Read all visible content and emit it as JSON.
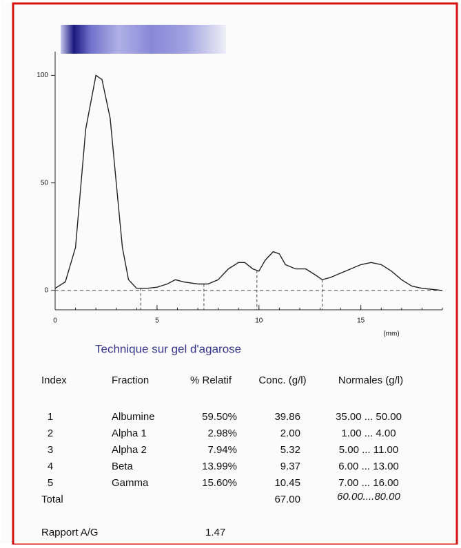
{
  "chart_data": {
    "type": "line",
    "xlabel": "(mm)",
    "x": [
      0,
      0.5,
      1,
      1.5,
      2,
      2.3,
      2.7,
      3,
      3.3,
      3.6,
      4,
      4.5,
      5,
      5.5,
      5.9,
      6.3,
      7,
      7.5,
      8,
      8.5,
      9,
      9.3,
      9.7,
      10,
      10.3,
      10.7,
      11,
      11.3,
      11.8,
      12.3,
      12.8,
      13.1,
      13.5,
      14,
      14.5,
      15,
      15.5,
      16,
      16.5,
      17,
      17.5,
      18,
      18.5,
      19
    ],
    "values": [
      1,
      4,
      20,
      75,
      100,
      98,
      80,
      50,
      20,
      5,
      1,
      1,
      1.5,
      3,
      5,
      4,
      3,
      3,
      5,
      10,
      13,
      13,
      10,
      9,
      14,
      18,
      17,
      12,
      10,
      10,
      7,
      5,
      6,
      8,
      10,
      12,
      13,
      12,
      9,
      5,
      2,
      1,
      0.5,
      0
    ],
    "color": "#222222",
    "dividers": [
      4.2,
      7.3,
      9.9,
      13.1
    ],
    "xlim": [
      0,
      19
    ],
    "ylim": [
      -9,
      111
    ],
    "xticks": [
      0,
      5,
      10,
      15
    ],
    "yticks": [
      0,
      50,
      100
    ]
  },
  "document": {
    "subtitle": "Technique sur gel d'agarose",
    "table": {
      "header": [
        "Index",
        "Fraction",
        "% Relatif",
        "Conc. (g/l)",
        "Normales (g/l)"
      ],
      "rows": [
        [
          "1",
          "Albumine",
          "59.50%",
          "39.86",
          "35.00 ... 50.00"
        ],
        [
          "2",
          "Alpha 1",
          "2.98%",
          "2.00",
          "1.00 ... 4.00"
        ],
        [
          "3",
          "Alpha 2",
          "7.94%",
          "5.32",
          "5.00 ... 11.00"
        ],
        [
          "4",
          "Beta",
          "13.99%",
          "9.37",
          "6.00 ... 13.00"
        ],
        [
          "5",
          "Gamma",
          "15.60%",
          "10.45",
          "7.00 ... 16.00"
        ]
      ],
      "total": {
        "label": "Total",
        "conc": "67.00",
        "normales": "60.00....80.00"
      }
    },
    "ratio": {
      "label": "Rapport A/G",
      "value": "1.47"
    }
  }
}
